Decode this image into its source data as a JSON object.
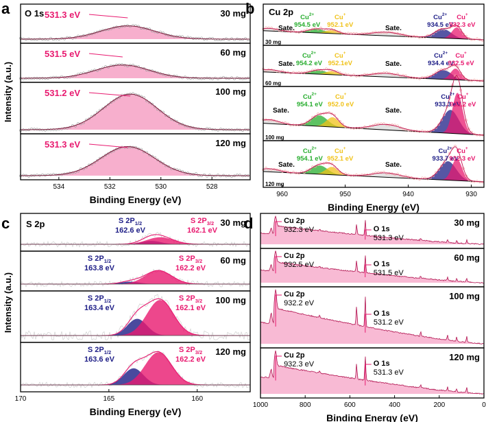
{
  "colors": {
    "pink": "#e8196f",
    "pinkFill": "#e8196f",
    "cu2": "#1d1d86",
    "cuS": "#27ad2e",
    "cuP": "#f0c21a",
    "sat": "#d9d9d9",
    "raw": "#f4a6a6",
    "frame": "#000000"
  },
  "chart_data": [
    {
      "type": "line",
      "panel": "a",
      "title": "O 1s",
      "xlabel": "Binding Energy (eV)",
      "ylabel": "Intensity (a.u.)",
      "xlim": [
        535.5,
        526.5
      ],
      "xticks": [
        "534",
        "532",
        "530",
        "528"
      ],
      "series": [
        {
          "name": "30 mg",
          "peak_eV": 531.3,
          "peak_label": "531.3 eV",
          "relative_height": 0.45
        },
        {
          "name": "60 mg",
          "peak_eV": 531.5,
          "peak_label": "531.5 eV",
          "relative_height": 0.45
        },
        {
          "name": "100 mg",
          "peak_eV": 531.2,
          "peak_label": "531.2 eV",
          "relative_height": 0.85
        },
        {
          "name": "120 mg",
          "peak_eV": 531.3,
          "peak_label": "531.3 eV",
          "relative_height": 0.8
        }
      ]
    },
    {
      "type": "line",
      "panel": "b",
      "title": "Cu 2p",
      "xlabel": "Binding Energy (eV)",
      "ylabel": "",
      "xlim": [
        963,
        928
      ],
      "xticks": [
        "960",
        "950",
        "940",
        "930"
      ],
      "series": [
        {
          "name": "30 mg",
          "sate_label": "Sate.",
          "peaks": [
            {
              "species": "Cu",
              "charge": "2+",
              "eV": 954.5,
              "label": "954.5 eV"
            },
            {
              "species": "Cu",
              "charge": "+",
              "eV": 952.1,
              "label": "952.1 eV"
            },
            {
              "species": "Cu",
              "charge": "2+",
              "eV": 934.5,
              "label": "934.5 eV"
            },
            {
              "species": "Cu",
              "charge": "+",
              "eV": 932.3,
              "label": "932.3 eV"
            }
          ]
        },
        {
          "name": "60 mg",
          "sate_label": "Sate.",
          "peaks": [
            {
              "species": "Cu",
              "charge": "2+",
              "eV": 954.2,
              "label": "954.2 eV"
            },
            {
              "species": "Cu",
              "charge": "+",
              "eV": 952.1,
              "label": "952.1eV"
            },
            {
              "species": "Cu",
              "charge": "2+",
              "eV": 934.4,
              "label": "934.4 eV"
            },
            {
              "species": "Cu",
              "charge": "+",
              "eV": 932.5,
              "label": "932.5 eV"
            }
          ]
        },
        {
          "name": "100 mg",
          "sate_label": "Sate.",
          "peaks": [
            {
              "species": "Cu",
              "charge": "2+",
              "eV": 954.1,
              "label": "954.1 eV"
            },
            {
              "species": "Cu",
              "charge": "+",
              "eV": 952.0,
              "label": "952.0 eV"
            },
            {
              "species": "Cu",
              "charge": "2+",
              "eV": 933.3,
              "label": "933.3 eV"
            },
            {
              "species": "Cu",
              "charge": "+",
              "eV": 932.2,
              "label": "932.2 eV"
            }
          ]
        },
        {
          "name": "120 mg",
          "sate_label": "Sate.",
          "peaks": [
            {
              "species": "Cu",
              "charge": "2+",
              "eV": 954.1,
              "label": "954.1 eV"
            },
            {
              "species": "Cu",
              "charge": "+",
              "eV": 952.1,
              "label": "952.1 eV"
            },
            {
              "species": "Cu",
              "charge": "2+",
              "eV": 933.7,
              "label": "933.7 eV"
            },
            {
              "species": "Cu",
              "charge": "+",
              "eV": 932.3,
              "label": "932.3 eV"
            }
          ]
        }
      ]
    },
    {
      "type": "line",
      "panel": "c",
      "title": "S 2p",
      "xlabel": "Binding Energy (eV)",
      "ylabel": "Intensity (a.u.)",
      "xlim": [
        170,
        157
      ],
      "xticks": [
        "170",
        "165",
        "160"
      ],
      "series": [
        {
          "name": "30 mg",
          "s12": {
            "label": "S 2P",
            "sub": "1/2",
            "eV": 162.6,
            "eV_label": "162.6 eV",
            "relative_height": 0.12
          },
          "s32": {
            "label": "S 2P",
            "sub": "3/2",
            "eV": 162.1,
            "eV_label": "162.1 eV",
            "relative_height": 0.25
          }
        },
        {
          "name": "60 mg",
          "s12": {
            "label": "S 2P",
            "sub": "1/2",
            "eV": 163.8,
            "eV_label": "163.8 eV",
            "relative_height": 0.08
          },
          "s32": {
            "label": "S 2P",
            "sub": "3/2",
            "eV": 162.2,
            "eV_label": "162.2 eV",
            "relative_height": 0.45
          }
        },
        {
          "name": "100 mg",
          "s12": {
            "label": "S 2P",
            "sub": "1/2",
            "eV": 163.4,
            "eV_label": "163.4 eV",
            "relative_height": 0.4
          },
          "s32": {
            "label": "S 2P",
            "sub": "3/2",
            "eV": 162.1,
            "eV_label": "162.1 eV",
            "relative_height": 0.85
          }
        },
        {
          "name": "120 mg",
          "s12": {
            "label": "S 2P",
            "sub": "1/2",
            "eV": 163.6,
            "eV_label": "163.6 eV",
            "relative_height": 0.42
          },
          "s32": {
            "label": "S 2P",
            "sub": "3/2",
            "eV": 162.2,
            "eV_label": "162.2 eV",
            "relative_height": 0.82
          }
        }
      ]
    },
    {
      "type": "line",
      "panel": "d",
      "title": "",
      "xlabel": "Binding Energy (eV)",
      "ylabel": "",
      "xlim": [
        1000,
        0
      ],
      "xticks": [
        "1000",
        "800",
        "600",
        "400",
        "200",
        "0"
      ],
      "series": [
        {
          "name": "30 mg",
          "cu_label": "Cu 2p",
          "cu_eV": 932.3,
          "cu_eV_label": "932.3 eV",
          "o_label": "O 1s",
          "o_eV": 531.3,
          "o_eV_label": "531.3 eV"
        },
        {
          "name": "60 mg",
          "cu_label": "Cu 2p",
          "cu_eV": 932.5,
          "cu_eV_label": "932.5 eV",
          "o_label": "O 1s",
          "o_eV": 531.5,
          "o_eV_label": "531.5 eV"
        },
        {
          "name": "100 mg",
          "cu_label": "Cu 2p",
          "cu_eV": 932.2,
          "cu_eV_label": "932.2 eV",
          "o_label": "O 1s",
          "o_eV": 531.2,
          "o_eV_label": "531.2 eV"
        },
        {
          "name": "120 mg",
          "cu_label": "Cu 2p",
          "cu_eV": 932.3,
          "cu_eV_label": "932.3 eV",
          "o_label": "O 1s",
          "o_eV": 531.3,
          "o_eV_label": "531.3 eV"
        }
      ]
    }
  ]
}
